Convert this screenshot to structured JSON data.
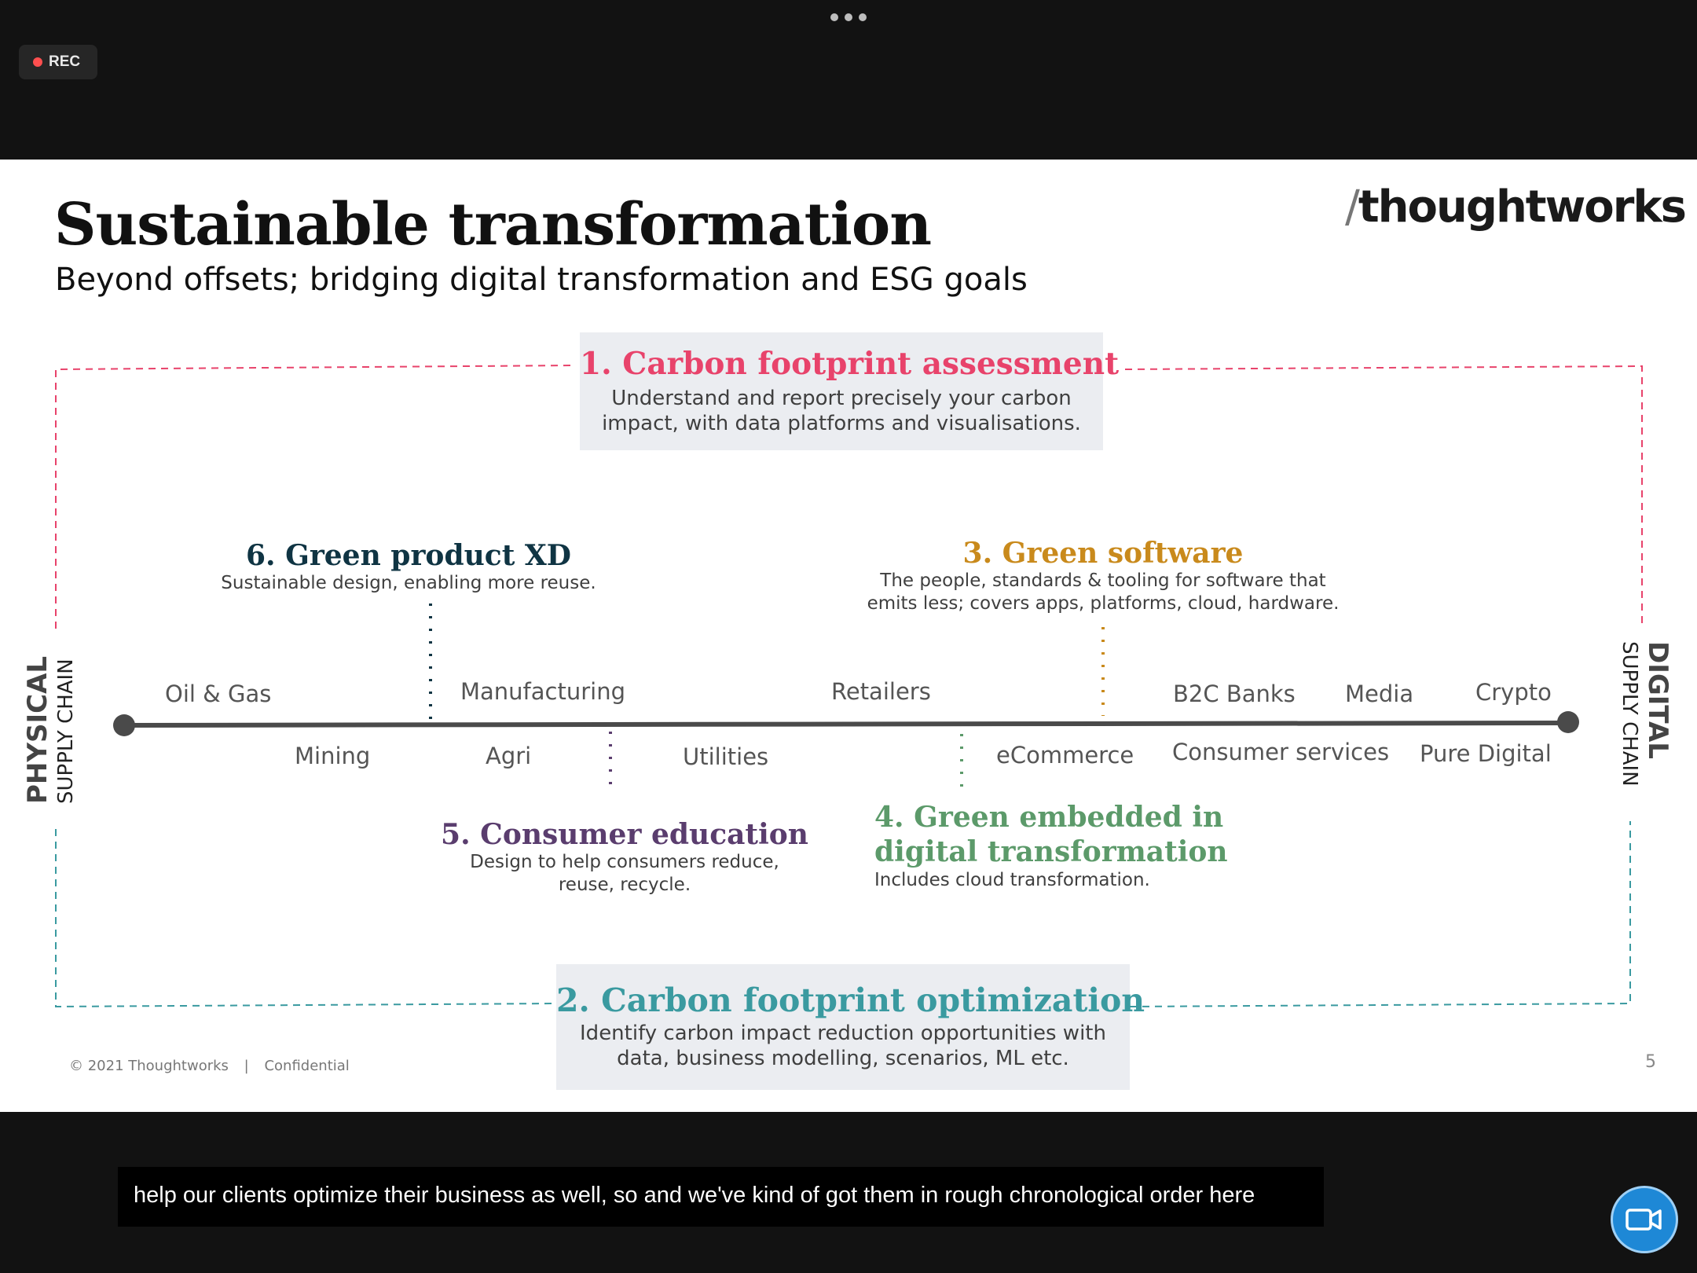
{
  "window": {
    "rec_label": "REC",
    "more_icon": "ellipsis-icon"
  },
  "slide": {
    "title": "Sustainable transformation",
    "subtitle": "Beyond offsets; bridging digital transformation and ESG goals",
    "logo_slash": "/",
    "logo_text": "thoughtworks",
    "box1": {
      "title": "1. Carbon footprint assessment",
      "text_line1": "Understand and report precisely your carbon",
      "text_line2": "impact, with data platforms and visualisations."
    },
    "box2": {
      "title": "2. Carbon footprint optimization",
      "text_line1": "Identify carbon impact reduction opportunities with",
      "text_line2": "data, business modelling, scenarios, ML etc."
    },
    "sec3": {
      "title": "3. Green software",
      "text_line1": "The people, standards & tooling for software that",
      "text_line2": "emits less; covers apps, platforms, cloud, hardware."
    },
    "sec4": {
      "title_line1": "4. Green embedded in",
      "title_line2": "digital transformation",
      "text": "Includes cloud transformation."
    },
    "sec5": {
      "title": "5. Consumer education",
      "text_line1": "Design to help consumers reduce,",
      "text_line2": "reuse, recycle."
    },
    "sec6": {
      "title": "6. Green product XD",
      "text": "Sustainable design, enabling more reuse."
    },
    "left_axis": {
      "main": "PHYSICAL",
      "sub": "SUPPLY CHAIN"
    },
    "right_axis": {
      "main": "DIGITAL",
      "sub": "SUPPLY CHAIN"
    },
    "top_labels": [
      "Oil & Gas",
      "Manufacturing",
      "Retailers",
      "B2C Banks",
      "Media",
      "Crypto"
    ],
    "bottom_labels": [
      "Mining",
      "Agri",
      "Utilities",
      "eCommerce",
      "Consumer services",
      "Pure Digital"
    ],
    "footer_copyright": "© 2021 Thoughtworks",
    "footer_sep": "|",
    "footer_confidential": "Confidential",
    "page_number": "5"
  },
  "captions": {
    "text": "help our clients optimize their business as well, so and we've kind of got them in rough chronological order here"
  },
  "colors": {
    "pink": "#e8436b",
    "teal": "#3a9aa0",
    "orange": "#c98a1c",
    "green": "#5c9a6a",
    "purple": "#5a3d6e",
    "navy": "#0f3443"
  }
}
